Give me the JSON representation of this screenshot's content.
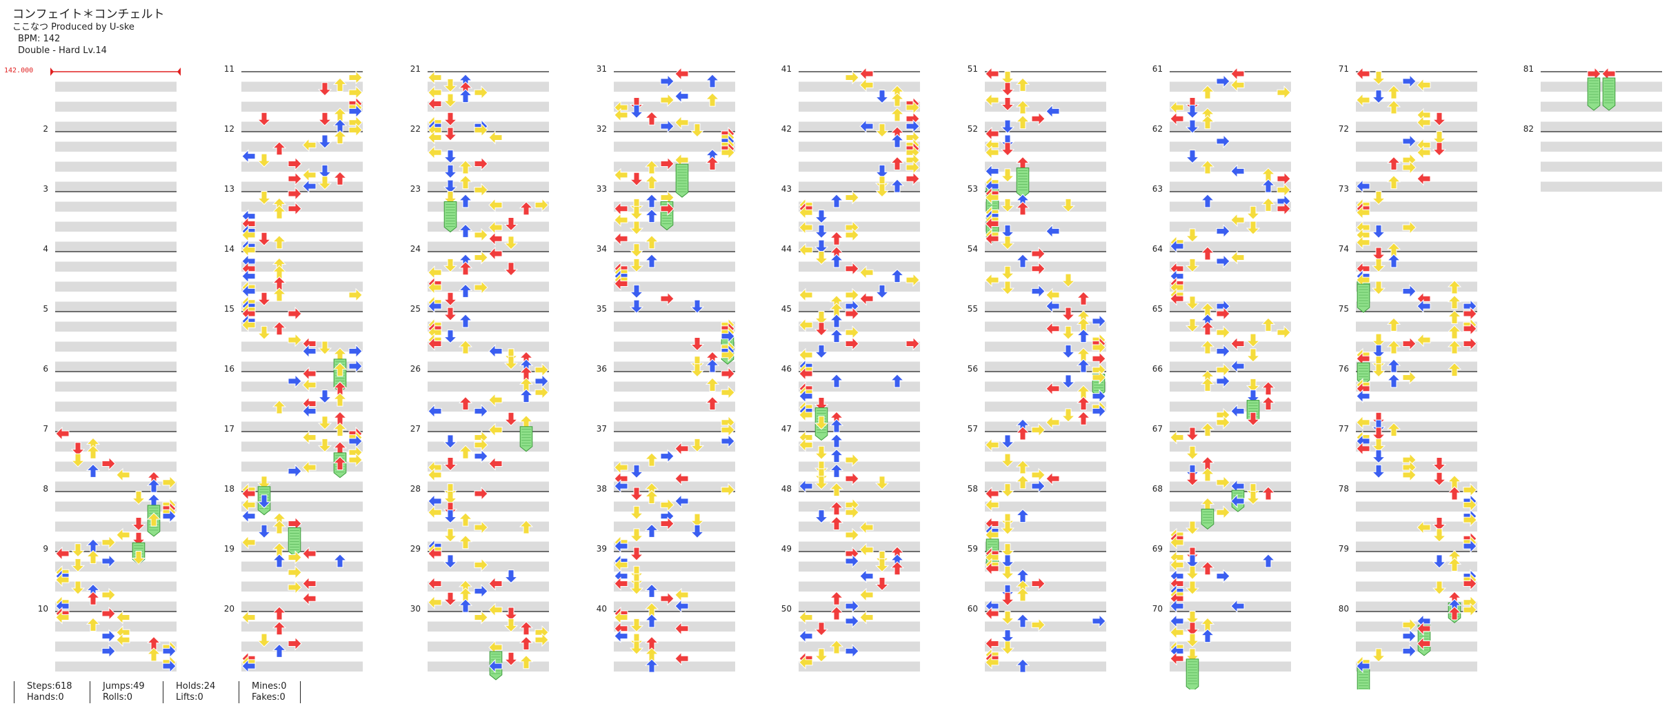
{
  "header": {
    "title": "コンフェイト＊コンチェルト",
    "artist_line": "ここなつ Produced by U-ske",
    "bpm_line": "BPM: 142",
    "difficulty_line": "Double - Hard  Lv.14"
  },
  "bpm_marker": "142.000",
  "colors": {
    "quarter": "#f03c3c",
    "eighth": "#3a5ef0",
    "sixteenth": "#f5dc3c",
    "hold": "#8fe08a",
    "bpm_line": "#e02020",
    "band": "#dcdcdc"
  },
  "measure_numbers": [
    "2",
    "3",
    "4",
    "5",
    "6",
    "7",
    "8",
    "9",
    "10",
    "11",
    "12",
    "13",
    "14",
    "15",
    "16",
    "17",
    "18",
    "19",
    "20",
    "21",
    "22",
    "23",
    "24",
    "25",
    "26",
    "27",
    "28",
    "29",
    "30",
    "31",
    "32",
    "33",
    "34",
    "35",
    "36",
    "37",
    "38",
    "39",
    "40",
    "41",
    "42",
    "43",
    "44",
    "45",
    "46",
    "47",
    "48",
    "49",
    "50",
    "51",
    "52",
    "53",
    "54",
    "55",
    "56",
    "57",
    "58",
    "59",
    "60",
    "61",
    "62",
    "63",
    "64",
    "65",
    "66",
    "67",
    "68",
    "69",
    "70",
    "71",
    "72",
    "73",
    "74",
    "75",
    "76",
    "77",
    "78",
    "79",
    "80",
    "81",
    "82"
  ],
  "stats": {
    "steps": "Steps:618",
    "hands": "Hands:0",
    "jumps": "Jumps:49",
    "rolls": "Rolls:0",
    "holds": "Holds:24",
    "lifts": "Lifts:0",
    "mines": "Mines:0",
    "fakes": "Fakes:0"
  }
}
